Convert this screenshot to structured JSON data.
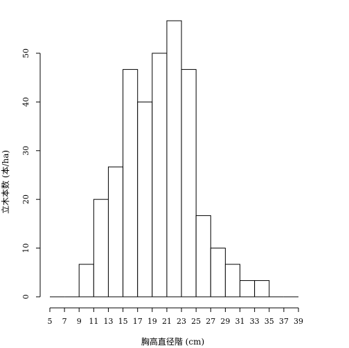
{
  "chart_data": {
    "type": "bar",
    "title": "",
    "xlabel": "胸高直径階 (cm)",
    "ylabel": "立木本数 (本/ha)",
    "bin_edges": [
      5,
      7,
      9,
      11,
      13,
      15,
      17,
      19,
      21,
      23,
      25,
      27,
      29,
      31,
      33,
      35,
      37,
      39
    ],
    "values": [
      0,
      0,
      6.67,
      20,
      26.67,
      46.67,
      40,
      50,
      56.67,
      46.67,
      16.67,
      10,
      6.67,
      3.33,
      3.33,
      0,
      0
    ],
    "x_ticks": [
      5,
      7,
      9,
      11,
      13,
      15,
      17,
      19,
      21,
      23,
      25,
      27,
      29,
      31,
      33,
      35,
      37,
      39
    ],
    "y_ticks": [
      0,
      10,
      20,
      30,
      40,
      50
    ],
    "xlim": [
      5,
      39
    ],
    "ylim": [
      0,
      56.67
    ],
    "grid": false,
    "colors": {
      "bar_fill": "#ffffff",
      "bar_stroke": "#000000",
      "axis": "#000000"
    }
  }
}
